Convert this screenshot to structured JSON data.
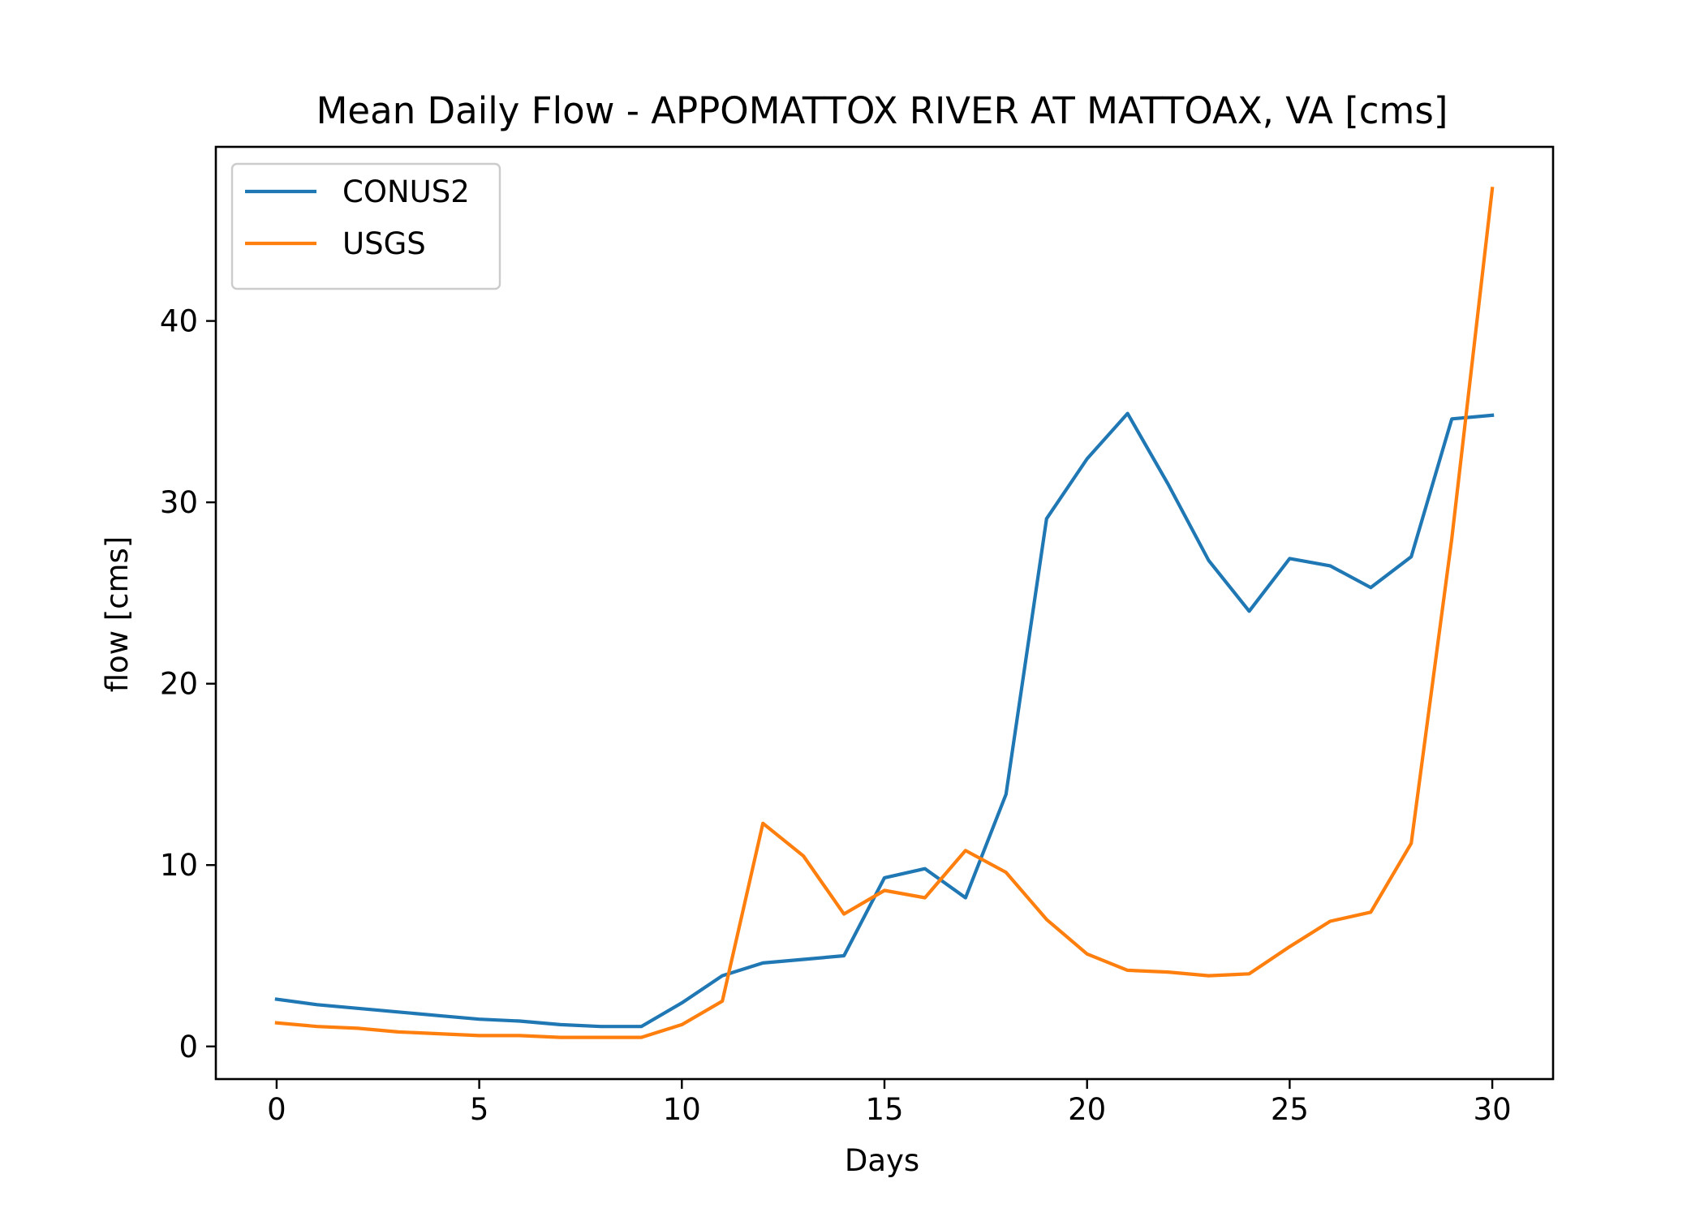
{
  "chart_data": {
    "type": "line",
    "title": "Mean Daily Flow - APPOMATTOX RIVER AT MATTOAX, VA [cms]",
    "xlabel": "Days",
    "ylabel": "flow [cms]",
    "xlim": [
      -1.5,
      31.5
    ],
    "ylim": [
      -1.8,
      49.6
    ],
    "xticks": [
      0,
      5,
      10,
      15,
      20,
      25,
      30
    ],
    "yticks": [
      0,
      10,
      20,
      30,
      40
    ],
    "grid": false,
    "legend_position": "top-left",
    "x": [
      0,
      1,
      2,
      3,
      4,
      5,
      6,
      7,
      8,
      9,
      10,
      11,
      12,
      13,
      14,
      15,
      16,
      17,
      18,
      19,
      20,
      21,
      22,
      23,
      24,
      25,
      26,
      27,
      28,
      29,
      30
    ],
    "series": [
      {
        "name": "CONUS2",
        "color": "#1f77b4",
        "values": [
          2.6,
          2.3,
          2.1,
          1.9,
          1.7,
          1.5,
          1.4,
          1.2,
          1.1,
          1.1,
          2.4,
          3.9,
          4.6,
          4.8,
          5.0,
          9.3,
          9.8,
          8.2,
          13.9,
          29.1,
          32.4,
          34.9,
          31.0,
          26.8,
          24.0,
          26.9,
          26.5,
          25.3,
          27.0,
          34.6,
          34.8
        ]
      },
      {
        "name": "USGS",
        "color": "#ff7f0e",
        "values": [
          1.3,
          1.1,
          1.0,
          0.8,
          0.7,
          0.6,
          0.6,
          0.5,
          0.5,
          0.5,
          1.2,
          2.5,
          12.3,
          10.5,
          7.3,
          8.6,
          8.2,
          10.8,
          9.6,
          7.0,
          5.1,
          4.2,
          4.1,
          3.9,
          4.0,
          5.5,
          6.9,
          7.4,
          11.2,
          28.0,
          47.3
        ]
      }
    ]
  }
}
